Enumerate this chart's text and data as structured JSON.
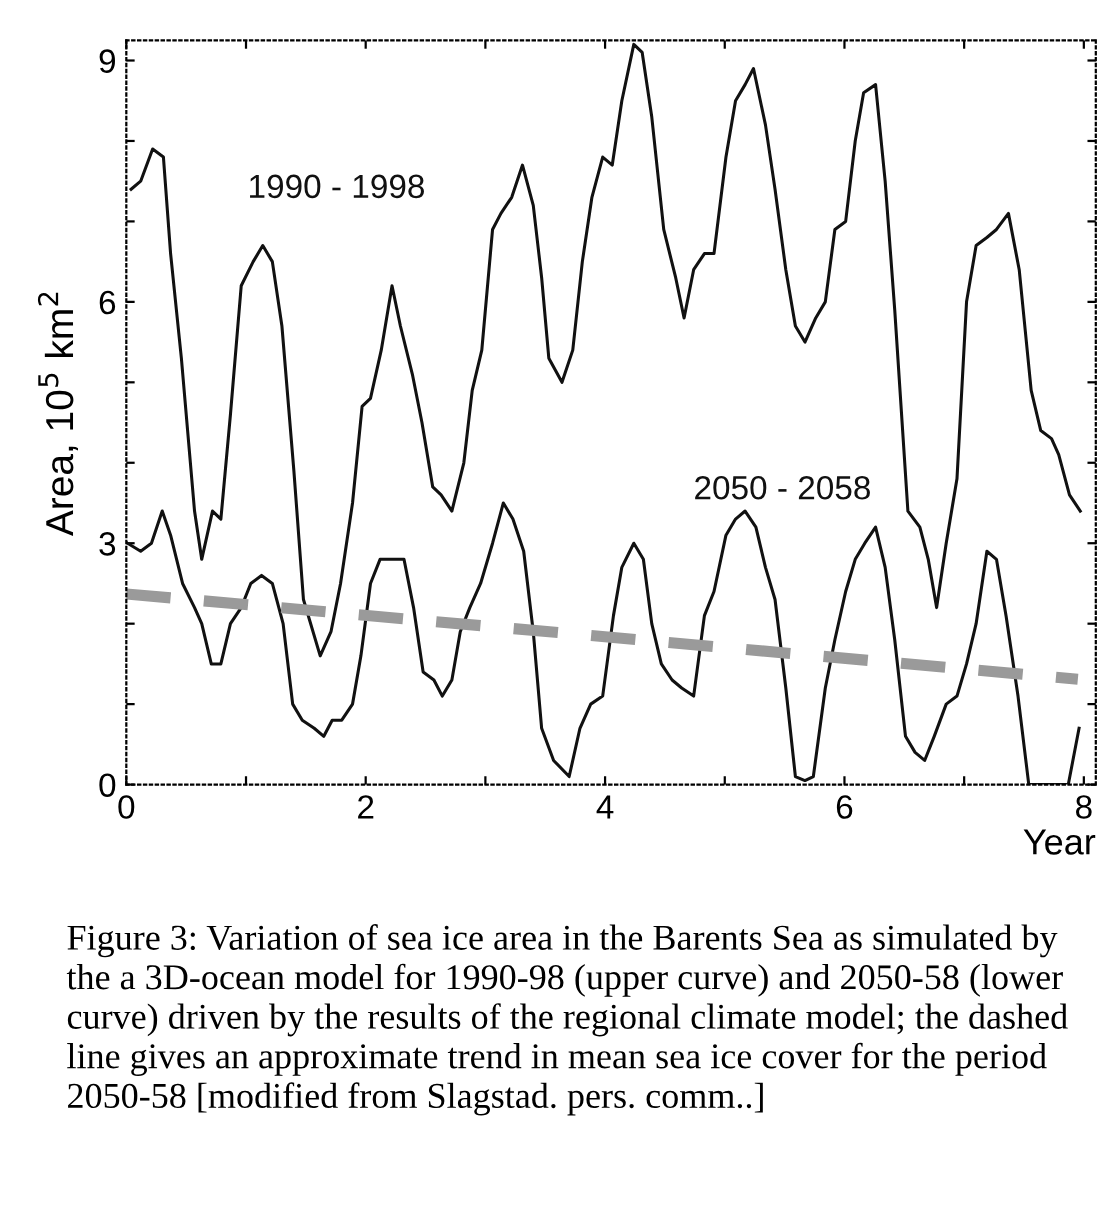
{
  "chart_data": {
    "type": "line",
    "xlabel": "Year",
    "ylabel": "Area, 10$^{5}$ km$^{2}$",
    "xlim": [
      0,
      8.1
    ],
    "ylim": [
      0,
      9.25
    ],
    "xticks": [
      0,
      {
        "value": 1,
        "label": null
      },
      2,
      {
        "value": 3,
        "label": null
      },
      4,
      {
        "value": 5,
        "label": null
      },
      6,
      {
        "value": 7,
        "label": null
      },
      8
    ],
    "yticks": [
      0,
      {
        "value": 1,
        "label": null
      },
      {
        "value": 2,
        "label": null
      },
      3,
      {
        "value": 4,
        "label": null
      },
      {
        "value": 5,
        "label": null
      },
      6,
      {
        "value": 7,
        "label": null
      },
      {
        "value": 8,
        "label": null
      },
      9
    ],
    "grid": false,
    "legend": false,
    "marker": "none",
    "series": [
      {
        "name": "1990 - 1998",
        "color": "#111111",
        "line_style": "solid",
        "x": [
          0.04,
          0.12,
          0.22,
          0.31,
          0.37,
          0.46,
          0.57,
          0.63,
          0.72,
          0.79,
          0.87,
          0.96,
          1.06,
          1.14,
          1.22,
          1.3,
          1.4,
          1.48,
          1.62,
          1.71,
          1.79,
          1.89,
          1.97,
          2.04,
          2.13,
          2.22,
          2.29,
          2.39,
          2.47,
          2.56,
          2.63,
          2.72,
          2.82,
          2.89,
          2.97,
          3.06,
          3.13,
          3.22,
          3.31,
          3.4,
          3.47,
          3.53,
          3.64,
          3.73,
          3.81,
          3.89,
          3.98,
          4.06,
          4.14,
          4.24,
          4.31,
          4.39,
          4.49,
          4.59,
          4.66,
          4.74,
          4.83,
          4.91,
          5.01,
          5.09,
          5.17,
          5.24,
          5.34,
          5.42,
          5.51,
          5.59,
          5.67,
          5.76,
          5.84,
          5.92,
          6.01,
          6.09,
          6.16,
          6.26,
          6.34,
          6.42,
          6.53,
          6.63,
          6.7,
          6.77,
          6.85,
          6.94,
          7.02,
          7.1,
          7.19,
          7.27,
          7.37,
          7.46,
          7.56,
          7.64,
          7.73,
          7.79,
          7.88,
          7.97
        ],
        "values": [
          7.4,
          7.5,
          7.9,
          7.8,
          6.6,
          5.3,
          3.4,
          2.8,
          3.4,
          3.3,
          4.6,
          6.2,
          6.5,
          6.7,
          6.5,
          5.7,
          3.9,
          2.3,
          1.6,
          1.9,
          2.5,
          3.5,
          4.7,
          4.8,
          5.4,
          6.2,
          5.7,
          5.1,
          4.5,
          3.7,
          3.6,
          3.4,
          4.0,
          4.9,
          5.4,
          6.9,
          7.1,
          7.3,
          7.7,
          7.2,
          6.3,
          5.3,
          5.0,
          5.4,
          6.5,
          7.3,
          7.8,
          7.7,
          8.5,
          9.2,
          9.1,
          8.3,
          6.9,
          6.3,
          5.8,
          6.4,
          6.6,
          6.6,
          7.8,
          8.5,
          8.7,
          8.9,
          8.2,
          7.4,
          6.4,
          5.7,
          5.5,
          5.8,
          6.0,
          6.9,
          7.0,
          8.0,
          8.6,
          8.7,
          7.5,
          5.9,
          3.4,
          3.2,
          2.8,
          2.2,
          3.0,
          3.8,
          6.0,
          6.7,
          6.8,
          6.9,
          7.1,
          6.4,
          4.9,
          4.4,
          4.3,
          4.1,
          3.6,
          3.4
        ]
      },
      {
        "name": "2050 - 2058",
        "color": "#111111",
        "line_style": "solid",
        "x": [
          0.01,
          0.12,
          0.21,
          0.3,
          0.37,
          0.47,
          0.57,
          0.63,
          0.71,
          0.79,
          0.87,
          0.96,
          1.04,
          1.13,
          1.22,
          1.31,
          1.39,
          1.47,
          1.57,
          1.65,
          1.72,
          1.8,
          1.89,
          1.96,
          2.04,
          2.12,
          2.23,
          2.32,
          2.4,
          2.48,
          2.57,
          2.64,
          2.72,
          2.79,
          2.87,
          2.96,
          3.06,
          3.15,
          3.23,
          3.32,
          3.4,
          3.47,
          3.57,
          3.7,
          3.79,
          3.88,
          3.98,
          4.07,
          4.14,
          4.24,
          4.32,
          4.39,
          4.47,
          4.56,
          4.64,
          4.74,
          4.83,
          4.91,
          5.01,
          5.09,
          5.17,
          5.26,
          5.34,
          5.42,
          5.51,
          5.59,
          5.67,
          5.74,
          5.84,
          5.92,
          6.01,
          6.09,
          6.17,
          6.26,
          6.34,
          6.42,
          6.51,
          6.59,
          6.67,
          6.75,
          6.85,
          6.94,
          7.02,
          7.1,
          7.19,
          7.27,
          7.35,
          7.45,
          7.54,
          7.64,
          7.77,
          7.87,
          7.96
        ],
        "values": [
          3.0,
          2.9,
          3.0,
          3.4,
          3.1,
          2.5,
          2.2,
          2.0,
          1.5,
          1.5,
          2.0,
          2.2,
          2.5,
          2.6,
          2.5,
          2.0,
          1.0,
          0.8,
          0.7,
          0.6,
          0.8,
          0.8,
          1.0,
          1.6,
          2.5,
          2.8,
          2.8,
          2.8,
          2.2,
          1.4,
          1.3,
          1.1,
          1.3,
          1.9,
          2.2,
          2.5,
          3.0,
          3.5,
          3.3,
          2.9,
          1.9,
          0.7,
          0.3,
          0.1,
          0.7,
          1.0,
          1.1,
          2.1,
          2.7,
          3.0,
          2.8,
          2.0,
          1.5,
          1.3,
          1.2,
          1.1,
          2.1,
          2.4,
          3.1,
          3.3,
          3.4,
          3.2,
          2.7,
          2.3,
          1.2,
          0.1,
          0.05,
          0.1,
          1.2,
          1.8,
          2.4,
          2.8,
          3.0,
          3.2,
          2.7,
          1.8,
          0.6,
          0.4,
          0.3,
          0.6,
          1.0,
          1.1,
          1.5,
          2.0,
          2.9,
          2.8,
          2.1,
          1.1,
          0.0,
          0.0,
          0.0,
          0.0,
          0.7
        ]
      },
      {
        "color": "#9a9a9a",
        "line_style": "dashed",
        "x": [
          0,
          7.95
        ],
        "values": [
          2.37,
          1.31
        ]
      }
    ],
    "annotations": [
      "Figure 3: Variation of sea ice area in the Barents Sea as simulated by the a 3D-ocean model for 1990-98 (upper curve) and 2050-58 (lower curve) driven by the results of the regional climate model; the dashed line gives an approximate trend in mean sea ice cover for the period 2050-58 [modified from Slagstad. pers. comm..]"
    ]
  }
}
